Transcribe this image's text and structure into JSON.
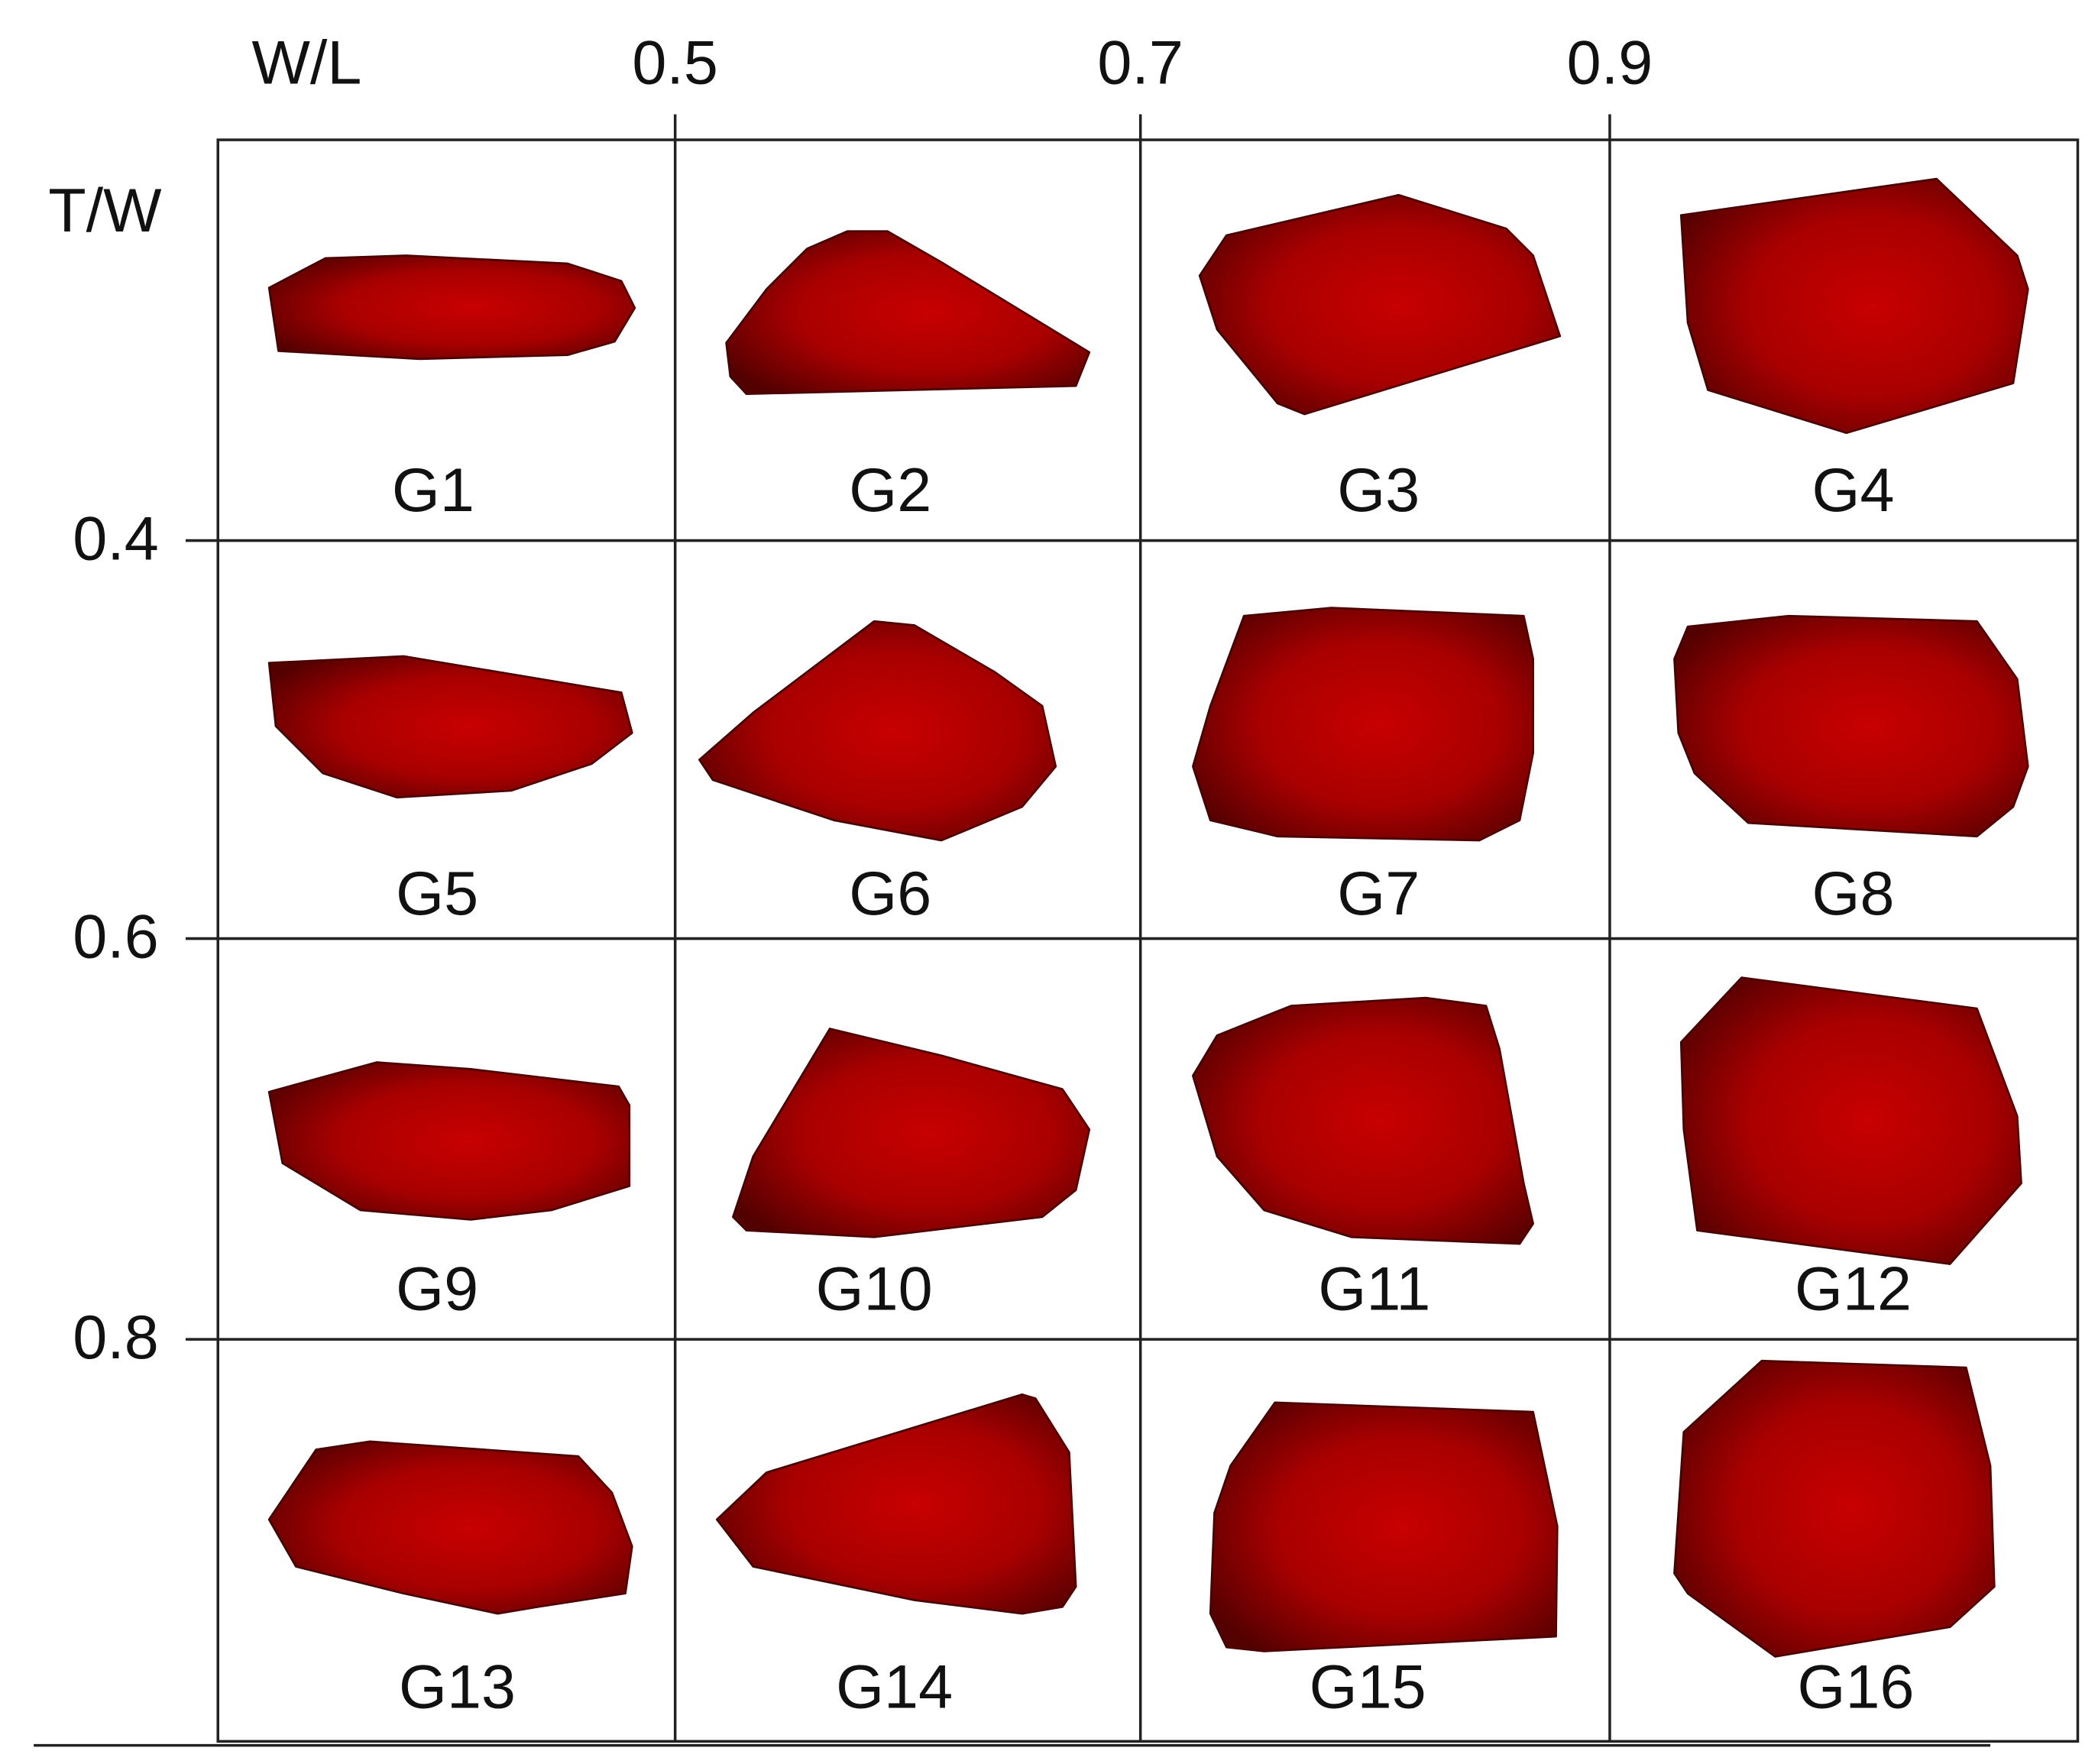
{
  "header": {
    "x_axis_label": "W/L",
    "y_axis_label": "T/W"
  },
  "x_ticks": [
    "0.5",
    "0.7",
    "0.9"
  ],
  "y_ticks": [
    "0.4",
    "0.6",
    "0.8"
  ],
  "cells": [
    "G1",
    "G2",
    "G3",
    "G4",
    "G5",
    "G6",
    "G7",
    "G8",
    "G9",
    "G10",
    "G11",
    "G12",
    "G13",
    "G14",
    "G15",
    "G16"
  ]
}
